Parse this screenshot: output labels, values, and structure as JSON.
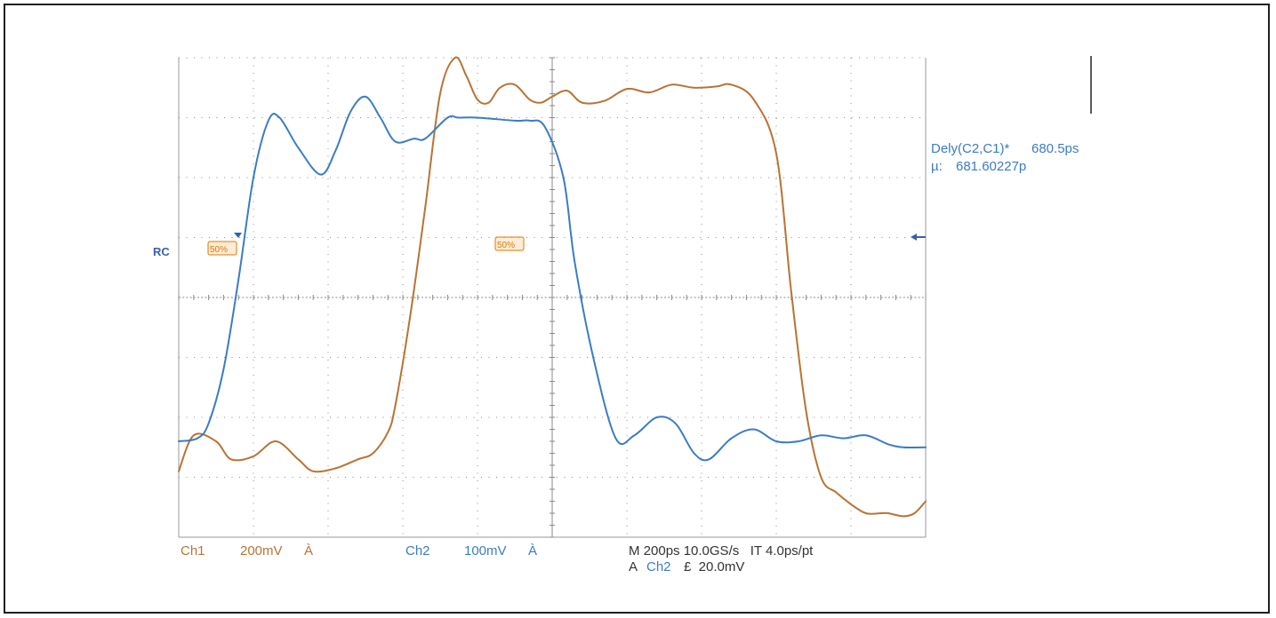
{
  "chart_data": {
    "type": "line",
    "title": "",
    "xlabel": "",
    "ylabel": "",
    "grid": true,
    "x_unit": "ps",
    "xlim": [
      -1000,
      1000
    ],
    "ylim": [
      -4,
      4
    ],
    "series": [
      {
        "name": "Ch1",
        "color": "#b87333",
        "x": [
          -1000,
          -960,
          -900,
          -860,
          -800,
          -740,
          -680,
          -640,
          -580,
          -520,
          -480,
          -440,
          -420,
          -380,
          -340,
          -300,
          -260,
          -230,
          -200,
          -170,
          -140,
          -100,
          -60,
          -30,
          0,
          40,
          80,
          140,
          200,
          260,
          320,
          380,
          440,
          480,
          540,
          600,
          640,
          680,
          720,
          760,
          800,
          840,
          880,
          900,
          940,
          970,
          1000
        ],
        "values": [
          -2.9,
          -2.3,
          -2.4,
          -2.7,
          -2.65,
          -2.4,
          -2.7,
          -2.9,
          -2.85,
          -2.7,
          -2.6,
          -2.25,
          -1.8,
          -0.3,
          1.5,
          3.4,
          4.0,
          3.7,
          3.3,
          3.25,
          3.5,
          3.55,
          3.3,
          3.25,
          3.35,
          3.45,
          3.25,
          3.28,
          3.48,
          3.42,
          3.55,
          3.5,
          3.52,
          3.55,
          3.3,
          2.4,
          0.1,
          -1.9,
          -3.0,
          -3.25,
          -3.45,
          -3.6,
          -3.6,
          -3.6,
          -3.65,
          -3.6,
          -3.4
        ],
        "scale": "200mV",
        "coupling": "À"
      },
      {
        "name": "Ch2",
        "color": "#3a7cc4",
        "x": [
          -1000,
          -950,
          -920,
          -880,
          -840,
          -800,
          -760,
          -730,
          -680,
          -620,
          -580,
          -540,
          -500,
          -460,
          -420,
          -370,
          -340,
          -280,
          -250,
          -200,
          -100,
          -60,
          -20,
          30,
          60,
          110,
          170,
          220,
          280,
          330,
          380,
          420,
          480,
          540,
          600,
          660,
          720,
          780,
          840,
          900,
          940,
          1000
        ],
        "values": [
          -2.4,
          -2.35,
          -2.1,
          -1.2,
          0.3,
          2.0,
          2.95,
          3.0,
          2.5,
          2.05,
          2.45,
          3.1,
          3.35,
          3.0,
          2.6,
          2.65,
          2.65,
          3.0,
          3.0,
          3.0,
          2.95,
          2.95,
          2.85,
          2.0,
          0.6,
          -1.0,
          -2.35,
          -2.3,
          -2.0,
          -2.1,
          -2.6,
          -2.7,
          -2.35,
          -2.2,
          -2.4,
          -2.4,
          -2.3,
          -2.35,
          -2.3,
          -2.45,
          -2.5,
          -2.5
        ],
        "scale": "100mV",
        "coupling": "À"
      }
    ],
    "channel_labels": {
      "ch1_name": "Ch1",
      "ch1_scale": "200mV",
      "ch1_coupling": "À",
      "ch2_name": "Ch2",
      "ch2_scale": "100mV",
      "ch2_coupling": "À"
    },
    "acquisition": {
      "line1": "M 200ps 10.0GS/s   IT 4.0ps/pt",
      "line2_prefix": "A",
      "line2_channel": "Ch2",
      "line2_suffix": "£  20.0mV"
    },
    "measurement": {
      "label": "Dely(C2,C1)*",
      "value": "680.5ps",
      "mean_label": "µ:",
      "mean_value": "681.60227p"
    },
    "markers": {
      "left_marker": "RC",
      "ch1_crossing_tag": "50%",
      "ch2_crossing_tag": "50%"
    },
    "colors": {
      "ch1": "#b87333",
      "ch2": "#3a7cc4",
      "grid": "#8c8c8c",
      "marker_fill": "#f6c98f",
      "marker_stroke": "#e07a00"
    }
  }
}
